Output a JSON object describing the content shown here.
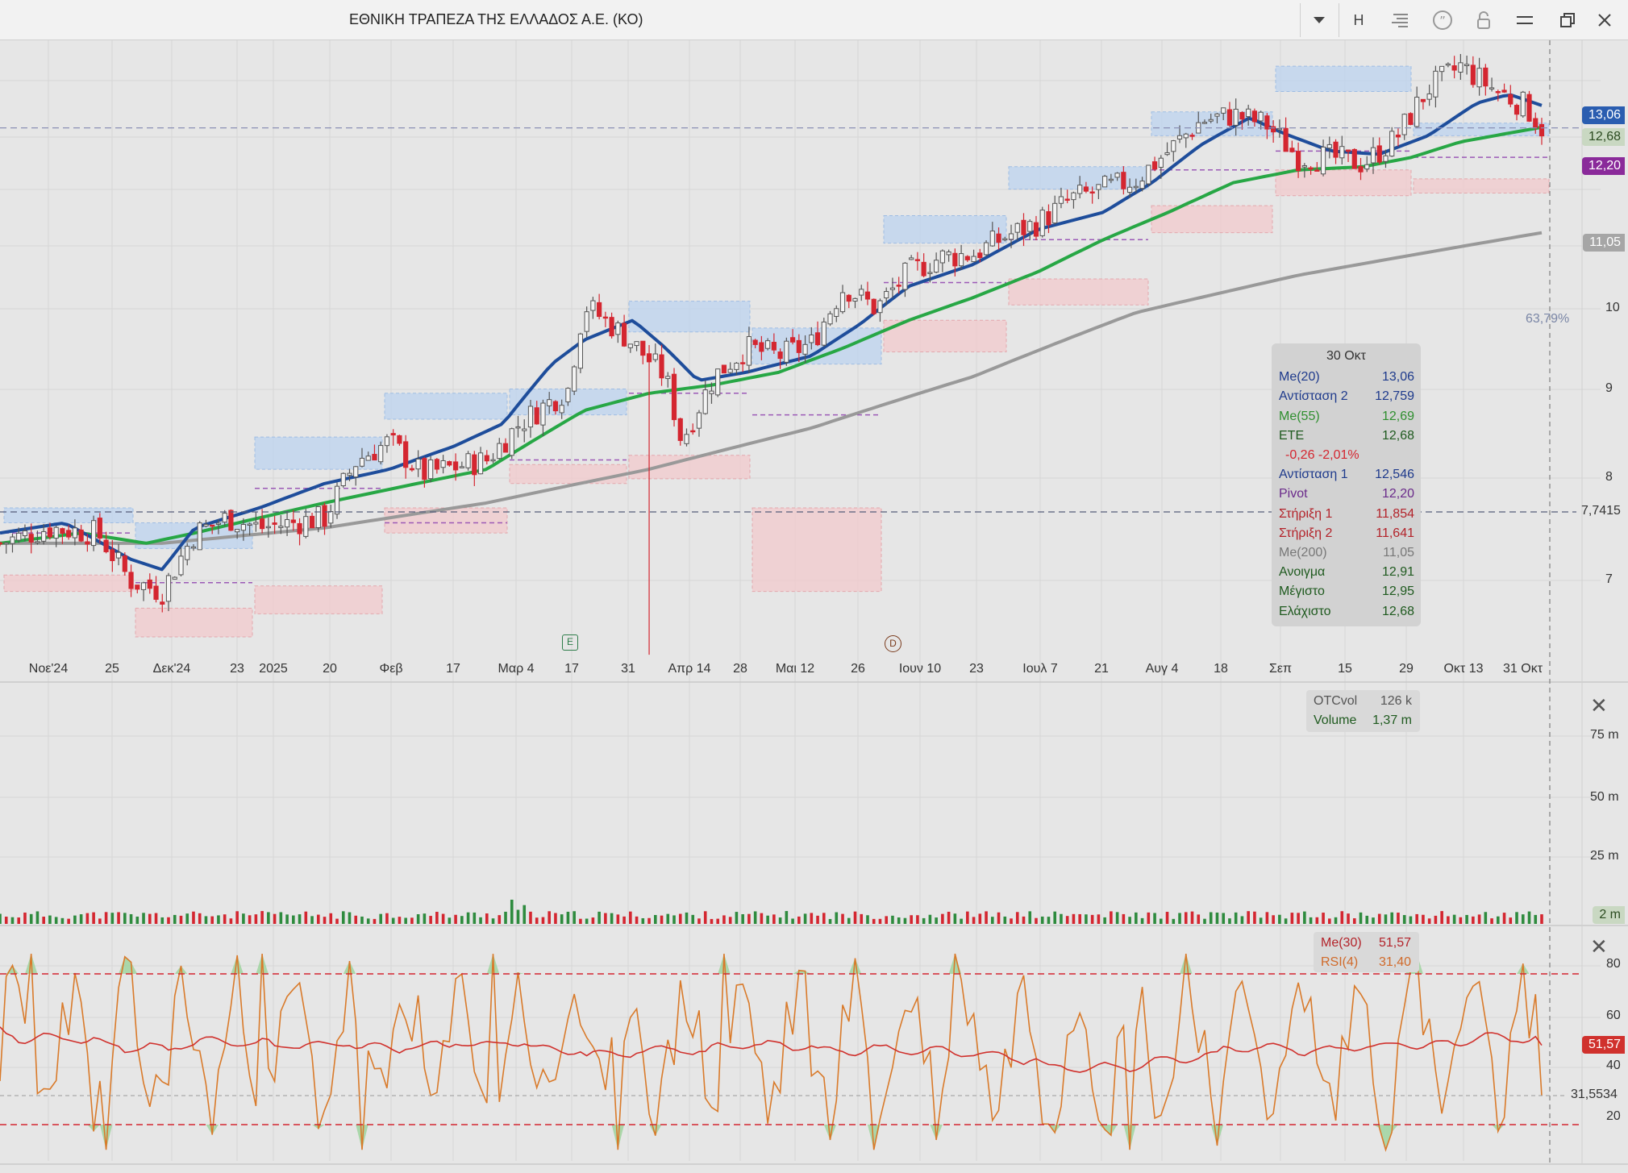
{
  "window": {
    "title": "ΕΘΝΙΚΗ ΤΡΑΠΕΖΑ ΤΗΣ ΕΛΛΑΔΟΣ Α.Ε. (ΚΟ)",
    "interval_button": "H"
  },
  "colors": {
    "blue": "#1e4d9b",
    "green": "#27a745",
    "gray": "#999999",
    "up": "#555555",
    "down": "#d42630",
    "rsi": "#d97a2a",
    "rsi_ma": "#d0312d"
  },
  "price_axis": {
    "ticks": [
      "7",
      "8",
      "9",
      "10"
    ],
    "current_price": "12,68",
    "line_price": "7,7415",
    "percent_change": "63,79%"
  },
  "price_badges": {
    "ma20": "13,06",
    "price": "12,68",
    "pivot": "12,20",
    "ma200": "11,05"
  },
  "time_axis": {
    "labels": [
      "Νοε'24",
      "25",
      "Δεκ'24",
      "23",
      "2025",
      "20",
      "Φεβ",
      "17",
      "Μαρ 4",
      "17",
      "31",
      "Απρ 14",
      "28",
      "Μαι 12",
      "26",
      "Ιουν 10",
      "23",
      "Ιουλ 7",
      "21",
      "Αυγ 4",
      "18",
      "Σεπ",
      "15",
      "29",
      "Οκτ 13"
    ],
    "current_label": "31 Οκτ"
  },
  "event_markers": [
    "E",
    "D"
  ],
  "tooltip": {
    "date": "30 Οκτ",
    "rows": [
      {
        "label": "Me(20)",
        "value": "13,06",
        "color": "#1e3a8c"
      },
      {
        "label": "Αντίσταση 2",
        "value": "12,759",
        "color": "#1e3a8c"
      },
      {
        "label": "Me(55)",
        "value": "12,69",
        "color": "#2f8f2f"
      },
      {
        "label": "ΕΤΕ",
        "value": "12,68",
        "color": "#1f5a1f"
      },
      {
        "label": "-0,26 -2,01%",
        "value": "",
        "color": "#d42630"
      },
      {
        "label": "Αντίσταση 1",
        "value": "12,546",
        "color": "#1e3a8c"
      },
      {
        "label": "Pivot",
        "value": "12,20",
        "color": "#6a2a8a"
      },
      {
        "label": "Στήριξη 1",
        "value": "11,854",
        "color": "#b3232a"
      },
      {
        "label": "Στήριξη 2",
        "value": "11,641",
        "color": "#b3232a"
      },
      {
        "label": "Me(200)",
        "value": "11,05",
        "color": "#777777"
      },
      {
        "label": "Ανοιγμα",
        "value": "12,91",
        "color": "#1f5a1f"
      },
      {
        "label": "Μέγιστο",
        "value": "12,95",
        "color": "#1f5a1f"
      },
      {
        "label": "Ελάχιστο",
        "value": "12,68",
        "color": "#1f5a1f"
      }
    ]
  },
  "volume_panel": {
    "legend": [
      {
        "label": "OTCvol",
        "value": "126 k"
      },
      {
        "label": "Volume",
        "value": "1,37 m"
      }
    ],
    "ticks": [
      "75 m",
      "50 m",
      "25 m"
    ],
    "badge": "2 m"
  },
  "rsi_panel": {
    "legend": [
      {
        "label": "Me(30)",
        "value": "51,57"
      },
      {
        "label": "RSI(4)",
        "value": "31,40"
      }
    ],
    "ticks": [
      "80",
      "60",
      "40",
      "20"
    ],
    "ma_badge": "51,57",
    "rsi_value": "31,5534",
    "overbought": 80,
    "oversold": 20
  },
  "chart_data": {
    "type": "candlestick",
    "instrument": "ΕΘΝΙΚΗ ΤΡΑΠΕΖΑ ΤΗΣ ΕΛΛΑΔΟΣ Α.Ε. (ΚΟ)",
    "range": "Nov 2024 - Oct 2025",
    "close_path": [
      [
        0,
        7.35
      ],
      [
        0.03,
        7.5
      ],
      [
        0.06,
        7.45
      ],
      [
        0.08,
        7.0
      ],
      [
        0.1,
        6.9
      ],
      [
        0.12,
        7.45
      ],
      [
        0.14,
        7.6
      ],
      [
        0.16,
        7.5
      ],
      [
        0.2,
        7.6
      ],
      [
        0.22,
        8.2
      ],
      [
        0.24,
        8.4
      ],
      [
        0.26,
        8.05
      ],
      [
        0.3,
        8.2
      ],
      [
        0.32,
        8.6
      ],
      [
        0.35,
        9.0
      ],
      [
        0.36,
        10.05
      ],
      [
        0.37,
        9.9
      ],
      [
        0.385,
        9.65
      ],
      [
        0.41,
        9.15
      ],
      [
        0.42,
        8.4
      ],
      [
        0.44,
        9.15
      ],
      [
        0.46,
        9.5
      ],
      [
        0.48,
        9.4
      ],
      [
        0.5,
        9.55
      ],
      [
        0.52,
        10.3
      ],
      [
        0.54,
        10.0
      ],
      [
        0.56,
        10.5
      ],
      [
        0.58,
        10.7
      ],
      [
        0.6,
        10.75
      ],
      [
        0.62,
        11.0
      ],
      [
        0.64,
        11.2
      ],
      [
        0.66,
        11.55
      ],
      [
        0.68,
        11.7
      ],
      [
        0.7,
        11.85
      ],
      [
        0.72,
        12.3
      ],
      [
        0.74,
        12.8
      ],
      [
        0.76,
        12.9
      ],
      [
        0.78,
        12.75
      ],
      [
        0.8,
        12.2
      ],
      [
        0.82,
        12.2
      ],
      [
        0.84,
        12.1
      ],
      [
        0.86,
        12.5
      ],
      [
        0.88,
        13.35
      ],
      [
        0.9,
        13.75
      ],
      [
        0.92,
        13.35
      ],
      [
        0.94,
        13.05
      ],
      [
        0.95,
        12.68
      ]
    ],
    "me20_path": [
      [
        0,
        7.45
      ],
      [
        0.04,
        7.55
      ],
      [
        0.08,
        7.2
      ],
      [
        0.1,
        7.1
      ],
      [
        0.12,
        7.5
      ],
      [
        0.16,
        7.7
      ],
      [
        0.2,
        7.95
      ],
      [
        0.24,
        8.1
      ],
      [
        0.28,
        8.35
      ],
      [
        0.31,
        8.6
      ],
      [
        0.34,
        9.3
      ],
      [
        0.36,
        9.6
      ],
      [
        0.39,
        9.85
      ],
      [
        0.41,
        9.5
      ],
      [
        0.43,
        9.1
      ],
      [
        0.46,
        9.2
      ],
      [
        0.5,
        9.4
      ],
      [
        0.53,
        9.8
      ],
      [
        0.56,
        10.3
      ],
      [
        0.6,
        10.6
      ],
      [
        0.64,
        11.1
      ],
      [
        0.68,
        11.35
      ],
      [
        0.71,
        11.8
      ],
      [
        0.74,
        12.4
      ],
      [
        0.77,
        12.85
      ],
      [
        0.79,
        12.6
      ],
      [
        0.82,
        12.3
      ],
      [
        0.85,
        12.25
      ],
      [
        0.88,
        12.55
      ],
      [
        0.91,
        13.1
      ],
      [
        0.93,
        13.25
      ],
      [
        0.95,
        13.06
      ]
    ],
    "me55_path": [
      [
        0,
        7.35
      ],
      [
        0.05,
        7.45
      ],
      [
        0.09,
        7.35
      ],
      [
        0.12,
        7.45
      ],
      [
        0.2,
        7.75
      ],
      [
        0.3,
        8.1
      ],
      [
        0.36,
        8.75
      ],
      [
        0.4,
        8.95
      ],
      [
        0.44,
        9.05
      ],
      [
        0.48,
        9.2
      ],
      [
        0.52,
        9.5
      ],
      [
        0.56,
        9.85
      ],
      [
        0.6,
        10.15
      ],
      [
        0.64,
        10.5
      ],
      [
        0.68,
        10.95
      ],
      [
        0.72,
        11.35
      ],
      [
        0.76,
        11.8
      ],
      [
        0.8,
        12.0
      ],
      [
        0.84,
        12.05
      ],
      [
        0.87,
        12.2
      ],
      [
        0.9,
        12.45
      ],
      [
        0.95,
        12.69
      ]
    ],
    "me200_path": [
      [
        0,
        7.35
      ],
      [
        0.1,
        7.35
      ],
      [
        0.2,
        7.5
      ],
      [
        0.3,
        7.75
      ],
      [
        0.4,
        8.1
      ],
      [
        0.5,
        8.55
      ],
      [
        0.6,
        9.15
      ],
      [
        0.7,
        9.95
      ],
      [
        0.8,
        10.45
      ],
      [
        0.9,
        10.85
      ],
      [
        0.95,
        11.05
      ]
    ],
    "ylim": [
      6.4,
      14.0
    ],
    "pivot_levels_latest": {
      "resistance_2": 12.759,
      "resistance_1": 12.546,
      "pivot": 12.2,
      "support_1": 11.854,
      "support_2": 11.641
    },
    "volume_last": "1,37 m",
    "rsi_last": 31.4,
    "rsi_ma_last": 51.57
  }
}
